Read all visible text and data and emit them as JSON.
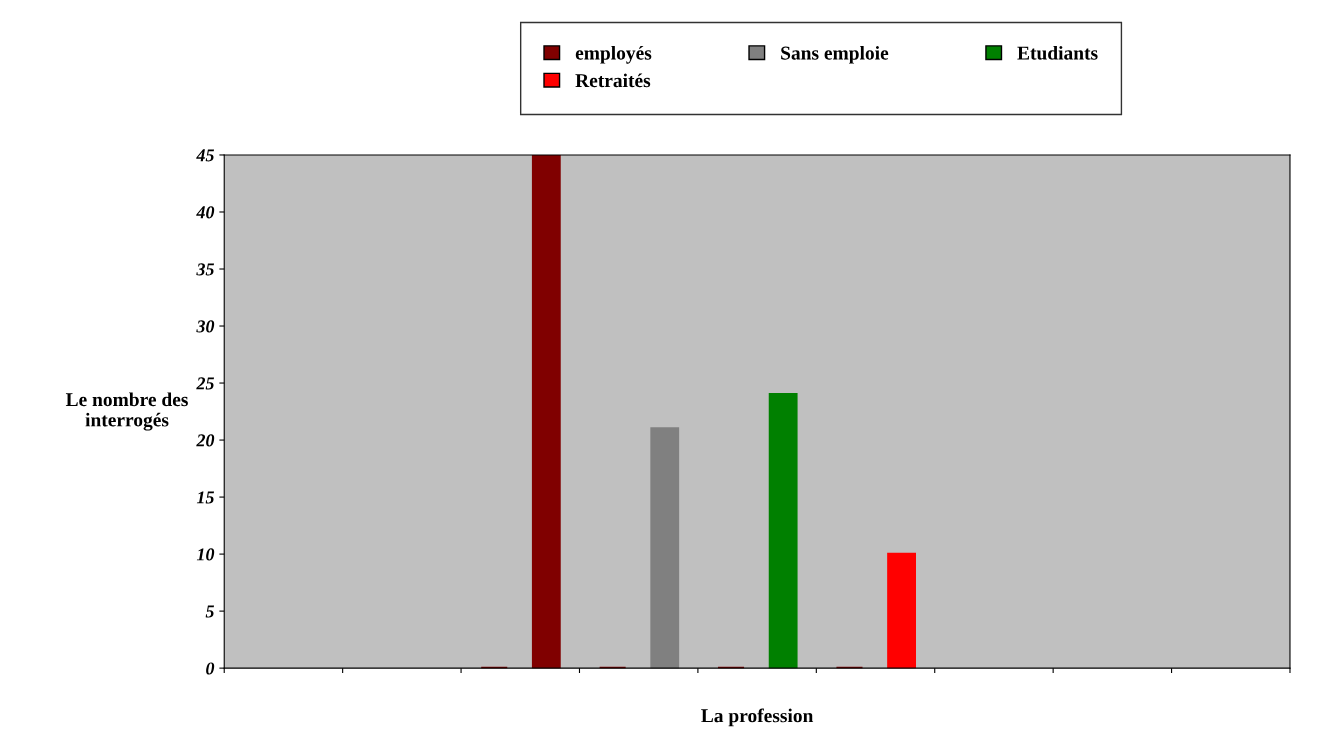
{
  "chart_data": {
    "type": "bar",
    "xlabel": "La profession",
    "ylabel": "Le nombre des\ninterrogés",
    "categories": [
      null,
      null,
      null,
      null,
      null,
      null,
      null,
      null,
      null
    ],
    "series": [
      {
        "color": "#800000",
        "values": [
          null,
          null,
          0,
          0,
          0,
          0,
          null,
          null,
          null
        ]
      },
      {
        "name": "employés",
        "color": "#800000",
        "values": [
          null,
          null,
          45,
          null,
          null,
          null,
          null,
          null,
          null
        ]
      },
      {
        "name": "Sans emploie",
        "color": "#808080",
        "values": [
          null,
          null,
          null,
          21,
          null,
          null,
          null,
          null,
          null
        ]
      },
      {
        "name": "Etudiants",
        "color": "#008000",
        "values": [
          null,
          null,
          null,
          null,
          24,
          null,
          null,
          null,
          null
        ]
      },
      {
        "name": "Retraités",
        "color": "#ff0000",
        "values": [
          null,
          null,
          null,
          null,
          null,
          10,
          null,
          null,
          null
        ]
      }
    ],
    "ylim": [
      0,
      45
    ],
    "yticks": [
      0,
      5,
      10,
      15,
      20,
      25,
      30,
      35,
      40,
      45
    ],
    "grid": false,
    "legend": "top"
  }
}
